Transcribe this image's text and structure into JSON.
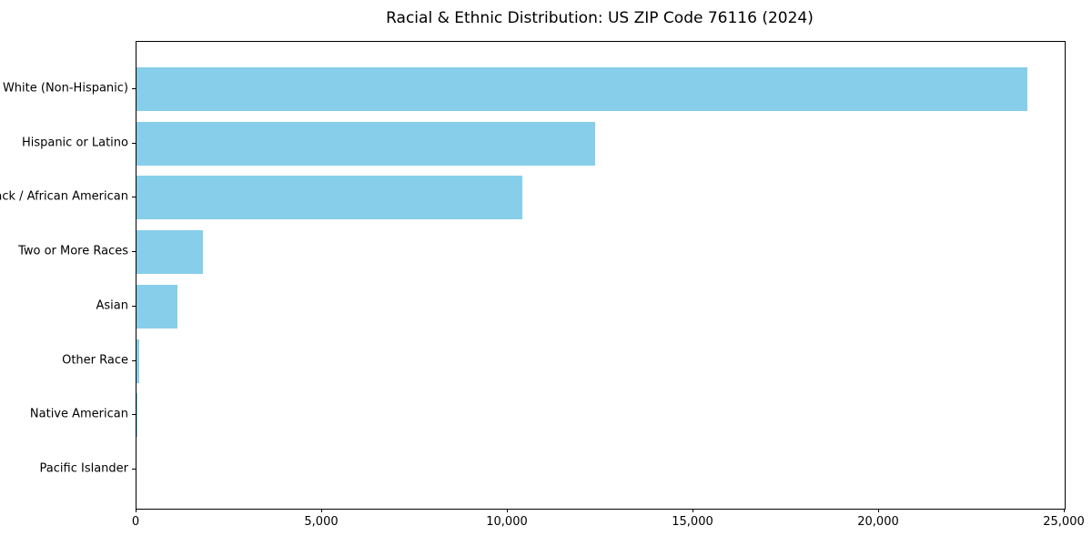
{
  "chart_data": {
    "type": "bar",
    "orientation": "horizontal",
    "title": "Racial & Ethnic Distribution: US ZIP Code 76116 (2024)",
    "categories": [
      "White (Non-Hispanic)",
      "Hispanic or Latino",
      "Black / African American",
      "Two or More Races",
      "Asian",
      "Other Race",
      "Native American",
      "Pacific Islander"
    ],
    "values": [
      24000,
      12350,
      10400,
      1800,
      1100,
      75,
      30,
      0
    ],
    "xlabel": "",
    "ylabel": "",
    "xlim": [
      0,
      25000
    ],
    "x_ticks": [
      0,
      5000,
      10000,
      15000,
      20000,
      25000
    ],
    "x_tick_labels": [
      "0",
      "5,000",
      "10,000",
      "15,000",
      "20,000",
      "25,000"
    ],
    "bar_color": "#87CEEB",
    "axis_color": "#000000",
    "grid": false,
    "legend": null
  }
}
